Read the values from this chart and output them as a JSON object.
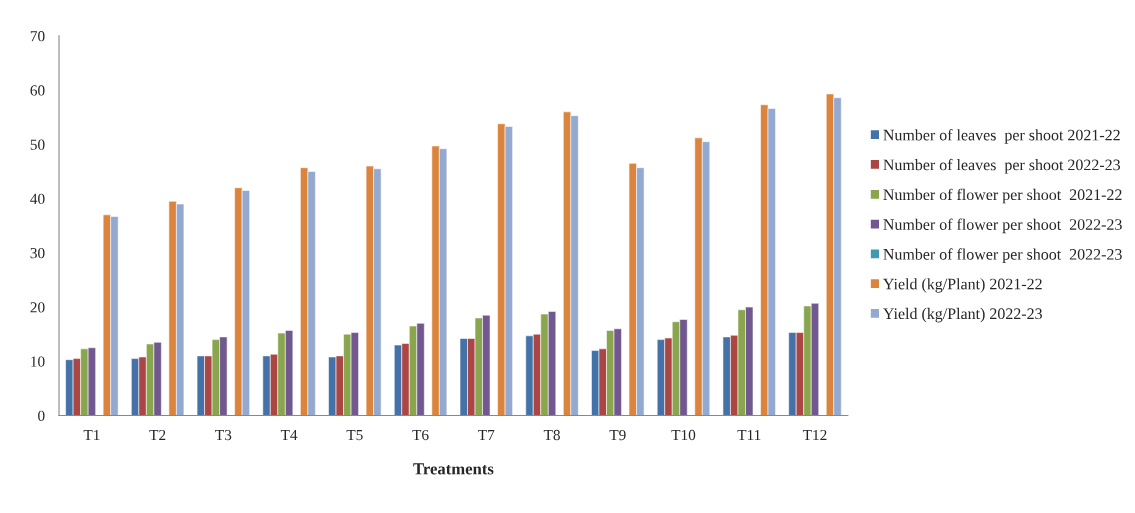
{
  "chart_data": {
    "type": "bar",
    "categories": [
      "T1",
      "T2",
      "T3",
      "T4",
      "T5",
      "T6",
      "T7",
      "T8",
      "T9",
      "T10",
      "T11",
      "T12"
    ],
    "xlabel": "Treatments",
    "series": [
      {
        "name": "Number of leaves  per shoot 2021-22",
        "color": "#4472a8",
        "values": [
          10.3,
          10.5,
          11.0,
          11.0,
          10.8,
          13.0,
          14.2,
          14.7,
          12.0,
          14.0,
          14.5,
          15.3
        ]
      },
      {
        "name": "Number of leaves  per shoot 2022-23",
        "color": "#aa4644",
        "values": [
          10.5,
          10.8,
          11.0,
          11.3,
          11.0,
          13.3,
          14.2,
          15.0,
          12.3,
          14.3,
          14.8,
          15.3
        ]
      },
      {
        "name": "Number of flower per shoot  2021-22",
        "color": "#89a54e",
        "values": [
          12.3,
          13.2,
          14.0,
          15.2,
          15.0,
          16.5,
          18.0,
          18.7,
          15.7,
          17.3,
          19.5,
          20.2
        ]
      },
      {
        "name": "Number of flower per shoot  2022-23",
        "color": "#71588f",
        "values": [
          12.5,
          13.5,
          14.5,
          15.7,
          15.3,
          17.0,
          18.5,
          19.2,
          16.0,
          17.7,
          20.0,
          20.7
        ]
      },
      {
        "name": "Number of flower per shoot  2022-23",
        "color": "#4198af",
        "values": [
          null,
          null,
          null,
          null,
          null,
          null,
          null,
          null,
          null,
          null,
          null,
          null
        ]
      },
      {
        "name": "Yield (kg/Plant) 2021-22",
        "color": "#db843d",
        "values": [
          37.0,
          39.5,
          42.0,
          45.7,
          46.0,
          49.7,
          53.8,
          56.0,
          46.5,
          51.2,
          57.3,
          59.3
        ]
      },
      {
        "name": "Yield (kg/Plant) 2022-23",
        "color": "#93a9cf",
        "values": [
          36.7,
          39.0,
          41.5,
          45.0,
          45.5,
          49.2,
          53.3,
          55.3,
          45.7,
          50.5,
          56.6,
          58.6
        ]
      }
    ],
    "ylim": [
      0,
      70
    ],
    "yticks": [
      0,
      10,
      20,
      30,
      40,
      50,
      60,
      70
    ],
    "grid": false,
    "legend": "right"
  }
}
